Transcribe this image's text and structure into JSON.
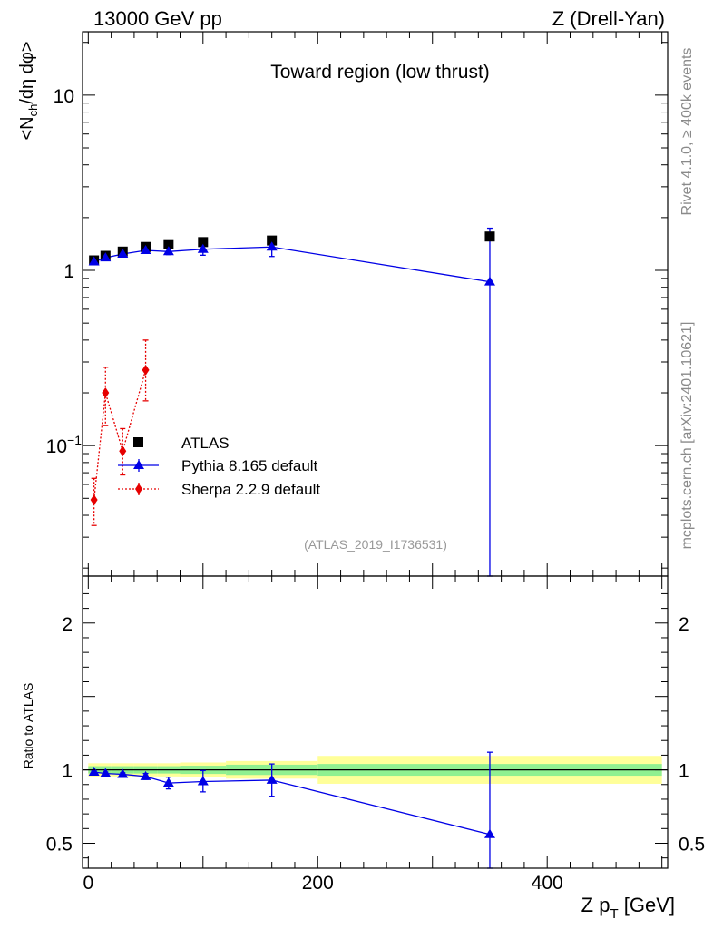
{
  "header": {
    "energy_label": "13000 GeV pp",
    "process_label": "Z (Drell-Yan)",
    "region_label": "Toward region (low thrust)",
    "analysis_tag": "(ATLAS_2019_I1736531)"
  },
  "side_labels": {
    "rivet": "Rivet 4.1.0, ≥ 400k events",
    "mcplots": "mcplots.cern.ch [arXiv:2401.10621]"
  },
  "chart_data": {
    "type": "scatter",
    "main": {
      "yscale": "log",
      "ylabel": "<N_ch/dη dφ>",
      "ylim": [
        0.018,
        23
      ],
      "xlim": [
        -5,
        505
      ],
      "yticks_major": [
        {
          "v": 0.1,
          "base": "10",
          "exp": "−1"
        },
        {
          "v": 1,
          "base": "1",
          "exp": ""
        },
        {
          "v": 10,
          "base": "10",
          "exp": ""
        }
      ]
    },
    "ratio": {
      "ylabel": "Ratio to ATLAS",
      "ylim": [
        0.33,
        2.32
      ],
      "yticks": [
        {
          "v": 0.5,
          "label": "0.5"
        },
        {
          "v": 1,
          "label": "1"
        },
        {
          "v": 2,
          "label": "2"
        }
      ]
    },
    "x_axis": {
      "label_main": "Z p",
      "label_sub": "T",
      "label_unit": " [GeV]",
      "ticks": [
        {
          "v": 0,
          "label": "0"
        },
        {
          "v": 200,
          "label": "200"
        },
        {
          "v": 400,
          "label": "400"
        }
      ]
    },
    "legend": {
      "position": "center-left",
      "entries": [
        {
          "name": "ATLAS",
          "marker": "square"
        },
        {
          "name": "Pythia 8.165 default",
          "marker": "triangle"
        },
        {
          "name": "Sherpa 2.2.9 default",
          "marker": "diamond"
        }
      ]
    },
    "colors": {
      "atlas": "#000000",
      "pythia": "#0000e6",
      "sherpa": "#e60000",
      "band_stat": "#90f090",
      "band_total": "#ffff99"
    },
    "series": [
      {
        "name": "ATLAS",
        "points": [
          {
            "x": 5,
            "y": 1.14
          },
          {
            "x": 15,
            "y": 1.21
          },
          {
            "x": 30,
            "y": 1.28
          },
          {
            "x": 50,
            "y": 1.36
          },
          {
            "x": 70,
            "y": 1.41
          },
          {
            "x": 100,
            "y": 1.45
          },
          {
            "x": 160,
            "y": 1.48
          },
          {
            "x": 350,
            "y": 1.56
          }
        ]
      },
      {
        "name": "Pythia 8.165 default",
        "points": [
          {
            "x": 5,
            "y": 1.12,
            "lo": 1.09,
            "hi": 1.15
          },
          {
            "x": 15,
            "y": 1.18,
            "lo": 1.15,
            "hi": 1.21
          },
          {
            "x": 30,
            "y": 1.24,
            "lo": 1.21,
            "hi": 1.27
          },
          {
            "x": 50,
            "y": 1.3,
            "lo": 1.26,
            "hi": 1.34
          },
          {
            "x": 70,
            "y": 1.28,
            "lo": 1.23,
            "hi": 1.33
          },
          {
            "x": 100,
            "y": 1.32,
            "lo": 1.22,
            "hi": 1.42
          },
          {
            "x": 160,
            "y": 1.36,
            "lo": 1.2,
            "hi": 1.52
          },
          {
            "x": 350,
            "y": 0.86,
            "lo": 0.001,
            "hi": 1.74
          }
        ]
      },
      {
        "name": "Sherpa 2.2.9 default",
        "points": [
          {
            "x": 5,
            "y": 0.049,
            "lo": 0.035,
            "hi": 0.065
          },
          {
            "x": 15,
            "y": 0.2,
            "lo": 0.13,
            "hi": 0.28
          },
          {
            "x": 30,
            "y": 0.093,
            "lo": 0.068,
            "hi": 0.125
          },
          {
            "x": 50,
            "y": 0.27,
            "lo": 0.18,
            "hi": 0.4
          }
        ]
      }
    ],
    "ratio_series": [
      {
        "name": "Pythia 8.165 default",
        "points": [
          {
            "x": 5,
            "y": 0.985,
            "lo": 0.975,
            "hi": 0.995
          },
          {
            "x": 15,
            "y": 0.975,
            "lo": 0.965,
            "hi": 0.985
          },
          {
            "x": 30,
            "y": 0.97,
            "lo": 0.96,
            "hi": 0.98
          },
          {
            "x": 50,
            "y": 0.955,
            "lo": 0.935,
            "hi": 0.975
          },
          {
            "x": 70,
            "y": 0.91,
            "lo": 0.87,
            "hi": 0.95
          },
          {
            "x": 100,
            "y": 0.92,
            "lo": 0.85,
            "hi": 0.995
          },
          {
            "x": 160,
            "y": 0.93,
            "lo": 0.82,
            "hi": 1.04
          },
          {
            "x": 350,
            "y": 0.56,
            "lo": 0.001,
            "hi": 1.12
          }
        ]
      }
    ],
    "ratio_bands": [
      {
        "x0": 0,
        "x1": 10,
        "stat": [
          0.975,
          1.025
        ],
        "total": [
          0.955,
          1.045
        ]
      },
      {
        "x0": 10,
        "x1": 20,
        "stat": [
          0.975,
          1.025
        ],
        "total": [
          0.955,
          1.045
        ]
      },
      {
        "x0": 20,
        "x1": 40,
        "stat": [
          0.975,
          1.025
        ],
        "total": [
          0.955,
          1.045
        ]
      },
      {
        "x0": 40,
        "x1": 60,
        "stat": [
          0.975,
          1.025
        ],
        "total": [
          0.955,
          1.045
        ]
      },
      {
        "x0": 60,
        "x1": 80,
        "stat": [
          0.975,
          1.025
        ],
        "total": [
          0.955,
          1.045
        ]
      },
      {
        "x0": 80,
        "x1": 120,
        "stat": [
          0.972,
          1.028
        ],
        "total": [
          0.95,
          1.05
        ]
      },
      {
        "x0": 120,
        "x1": 200,
        "stat": [
          0.965,
          1.035
        ],
        "total": [
          0.94,
          1.06
        ]
      },
      {
        "x0": 200,
        "x1": 500,
        "stat": [
          0.96,
          1.04
        ],
        "total": [
          0.905,
          1.095
        ]
      }
    ]
  }
}
